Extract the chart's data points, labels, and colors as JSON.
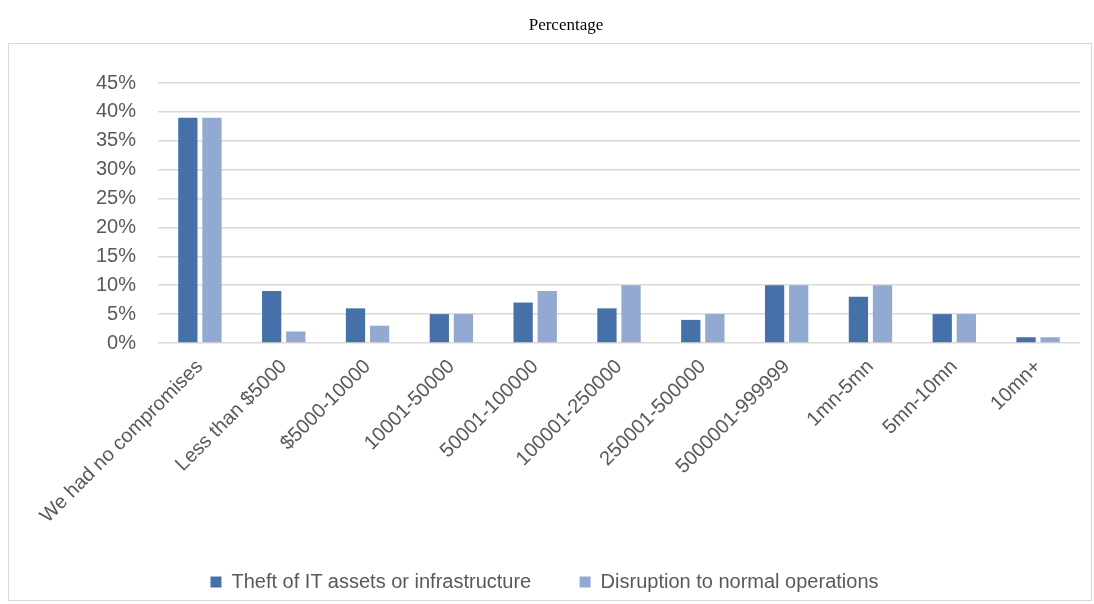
{
  "chart_data": {
    "type": "bar",
    "title": "Percentage",
    "categories": [
      "We had no compromises",
      "Less than $5000",
      "$5000-10000",
      "10001-50000",
      "50001-100000",
      "100001-250000",
      "250001-500000",
      "5000001-999999",
      "1mn-5mn",
      "5mn-10mn",
      "10mn+"
    ],
    "series": [
      {
        "name": "Theft of IT assets or infrastructure",
        "color": "#4571a8",
        "values": [
          39,
          9,
          6,
          5,
          7,
          6,
          4,
          10,
          8,
          5,
          1
        ]
      },
      {
        "name": "Disruption to normal operations",
        "color": "#92a9d1",
        "values": [
          39,
          2,
          3,
          5,
          9,
          10,
          5,
          10,
          10,
          5,
          1
        ]
      }
    ],
    "ylim": [
      0,
      45
    ],
    "yticks": [
      {
        "value": 0,
        "label": "0%"
      },
      {
        "value": 5,
        "label": "5%"
      },
      {
        "value": 10,
        "label": "10%"
      },
      {
        "value": 15,
        "label": "15%"
      },
      {
        "value": 20,
        "label": "20%"
      },
      {
        "value": 25,
        "label": "25%"
      },
      {
        "value": 30,
        "label": "30%"
      },
      {
        "value": 35,
        "label": "35%"
      },
      {
        "value": 40,
        "label": "40%"
      },
      {
        "value": 45,
        "label": "45%"
      }
    ],
    "grid": "y",
    "legend": "bottom"
  }
}
